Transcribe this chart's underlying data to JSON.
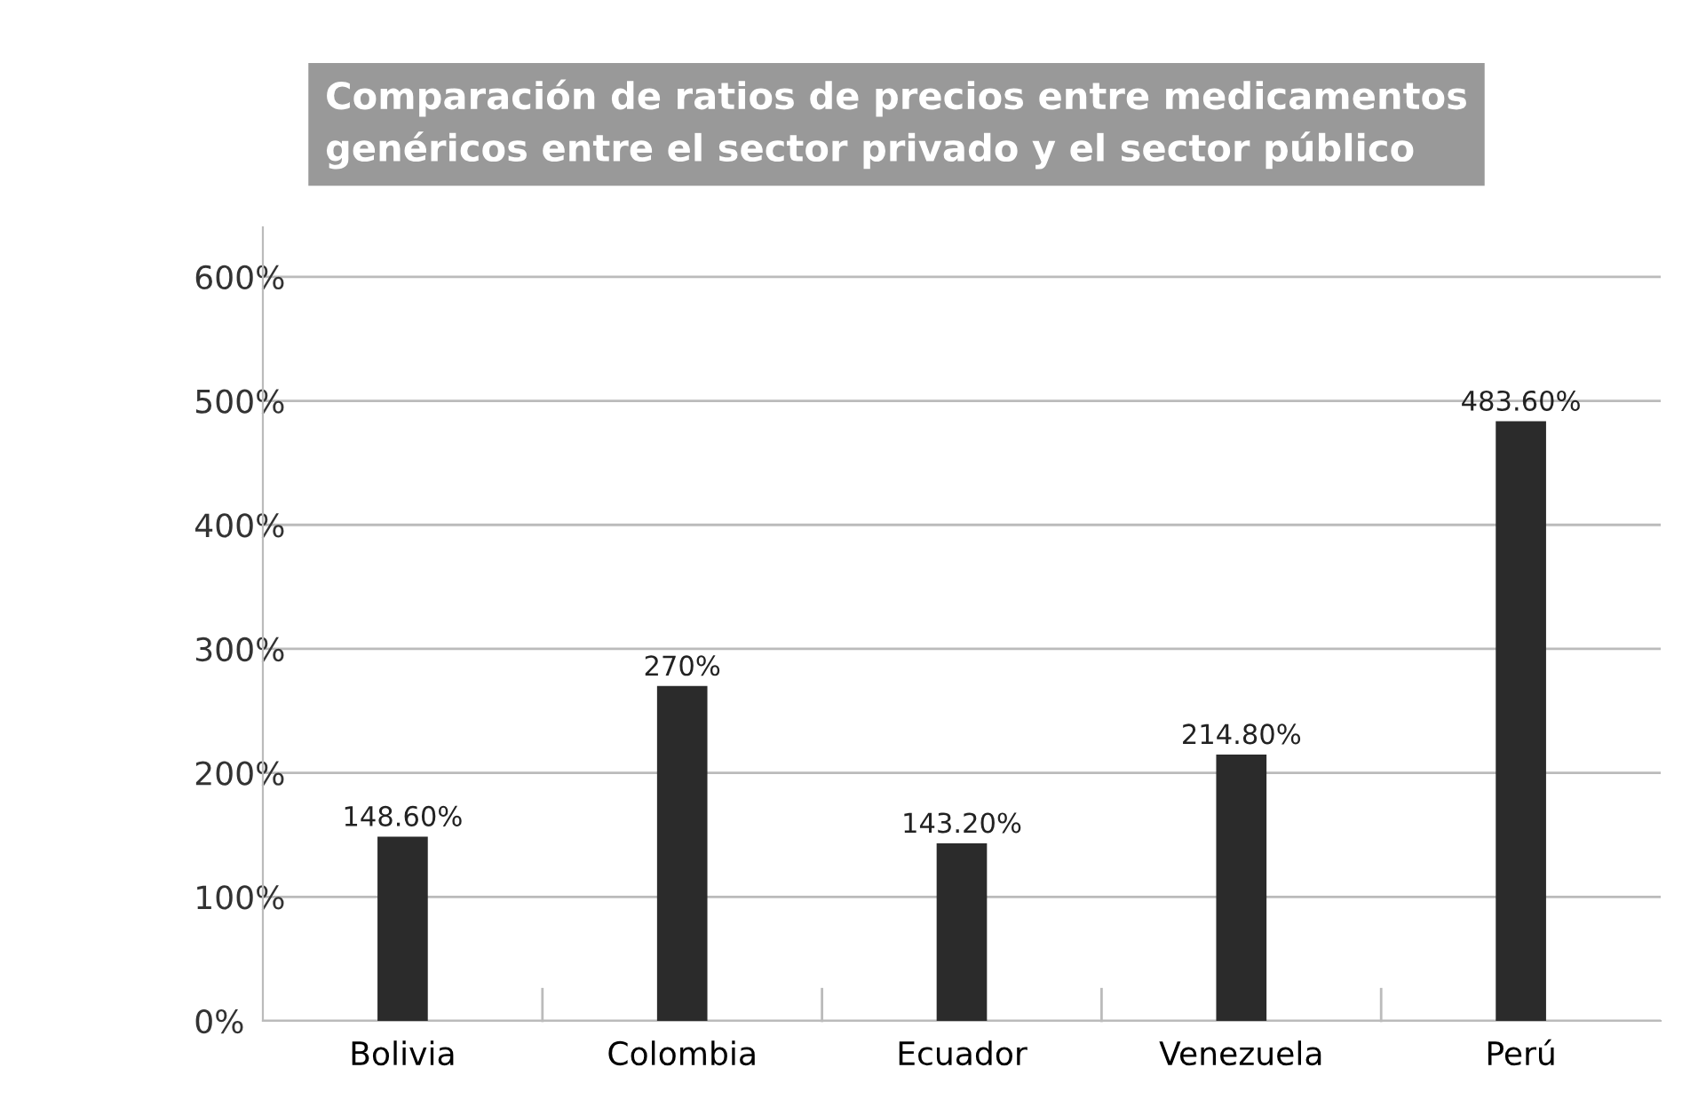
{
  "chart_data": {
    "type": "bar",
    "title": "Comparación de ratios de precios entre medicamentos\ngenéricos entre el sector privado y el sector público",
    "categories": [
      "Bolivia",
      "Colombia",
      "Ecuador",
      "Venezuela",
      "Perú"
    ],
    "values": [
      148.6,
      270,
      143.2,
      214.8,
      483.6
    ],
    "value_labels": [
      "148.60%",
      "270%",
      "143.20%",
      "214.80%",
      "483.60%"
    ],
    "color": "#2b2b2b",
    "ylim": [
      0,
      640
    ],
    "yticks": [
      {
        "value": 0,
        "label": "0%"
      },
      {
        "value": 100,
        "label": "100%"
      },
      {
        "value": 200,
        "label": "200%"
      },
      {
        "value": 300,
        "label": "300%"
      },
      {
        "value": 400,
        "label": "400%"
      },
      {
        "value": 500,
        "label": "500%"
      },
      {
        "value": 600,
        "label": "600%"
      }
    ],
    "grid": "y",
    "legend": false
  }
}
